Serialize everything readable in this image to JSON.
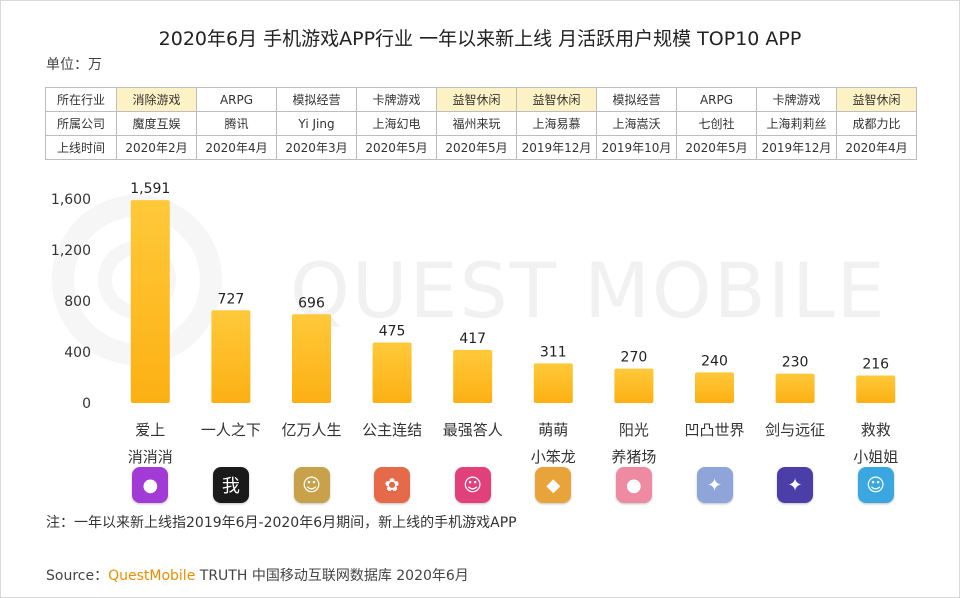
{
  "title": "2020年6月 手机游戏APP行业 一年以来新上线 月活跃用户规模 TOP10 APP",
  "unit": "单位：万",
  "table": {
    "row_headers": [
      "所在行业",
      "所属公司",
      "上线时间"
    ],
    "industry": [
      "消除游戏",
      "ARPG",
      "模拟经营",
      "卡牌游戏",
      "益智休闲",
      "益智休闲",
      "模拟经营",
      "ARPG",
      "卡牌游戏",
      "益智休闲"
    ],
    "company": [
      "魔度互娱",
      "腾讯",
      "Yi Jing",
      "上海幻电",
      "福州来玩",
      "上海易慕",
      "上海嵩沃",
      "七创社",
      "上海莉莉丝",
      "成都力比"
    ],
    "launch": [
      "2020年2月",
      "2020年4月",
      "2020年3月",
      "2020年5月",
      "2020年5月",
      "2019年12月",
      "2019年10月",
      "2020年5月",
      "2019年12月",
      "2020年4月"
    ]
  },
  "chart_data": {
    "type": "bar",
    "categories": [
      "爱上消消消",
      "一人之下",
      "亿万人生",
      "公主连结",
      "最强答人",
      "萌萌小笨龙",
      "阳光养猪场",
      "凹凸世界",
      "剑与远征",
      "救救小姐姐"
    ],
    "category_lines": [
      [
        "爱上",
        "消消消"
      ],
      [
        "一人之下"
      ],
      [
        "亿万人生"
      ],
      [
        "公主连结"
      ],
      [
        "最强答人"
      ],
      [
        "萌萌",
        "小笨龙"
      ],
      [
        "阳光",
        "养猪场"
      ],
      [
        "凹凸世界"
      ],
      [
        "剑与远征"
      ],
      [
        "救救",
        "小姐姐"
      ]
    ],
    "values": [
      1591,
      727,
      696,
      475,
      417,
      311,
      270,
      240,
      230,
      216
    ],
    "value_labels": [
      "1,591",
      "727",
      "696",
      "475",
      "417",
      "311",
      "270",
      "240",
      "230",
      "216"
    ],
    "yticks": [
      0,
      400,
      800,
      1200,
      1600
    ],
    "ytick_labels": [
      "0",
      "400",
      "800",
      "1,200",
      "1,600"
    ],
    "ylim": [
      0,
      1650
    ],
    "grid": false,
    "legend": "none",
    "colors": {
      "bar_top": "#ffc93a",
      "bar_bottom": "#fcb013"
    }
  },
  "app_icons": [
    {
      "name": "candy-icon",
      "glyph": "●",
      "color": "#a23ad6"
    },
    {
      "name": "ink-character-icon",
      "glyph": "我",
      "color": "#1a1a1a"
    },
    {
      "name": "portrait-icon",
      "glyph": "☺",
      "color": "#c8a24a"
    },
    {
      "name": "anime-girl-icon",
      "glyph": "✿",
      "color": "#e56a4a"
    },
    {
      "name": "host-portrait-icon",
      "glyph": "☺",
      "color": "#e2407a"
    },
    {
      "name": "dragon-icon",
      "glyph": "◆",
      "color": "#e8a43a"
    },
    {
      "name": "pig-icon",
      "glyph": "●",
      "color": "#ef8aa3"
    },
    {
      "name": "anime-character-icon",
      "glyph": "✦",
      "color": "#8fa4d8"
    },
    {
      "name": "dark-beast-icon",
      "glyph": "✦",
      "color": "#4b3ea8"
    },
    {
      "name": "rescue-girl-icon",
      "glyph": "☺",
      "color": "#3aa7e0"
    }
  ],
  "note": "注：一年以来新上线指2019年6月-2020年6月期间，新上线的手机游戏APP",
  "source": {
    "prefix": "Source：",
    "brand": "QuestMobile",
    "suffix": " TRUTH 中国移动互联网数据库 2020年6月"
  },
  "watermark": "QUEST MOBILE"
}
